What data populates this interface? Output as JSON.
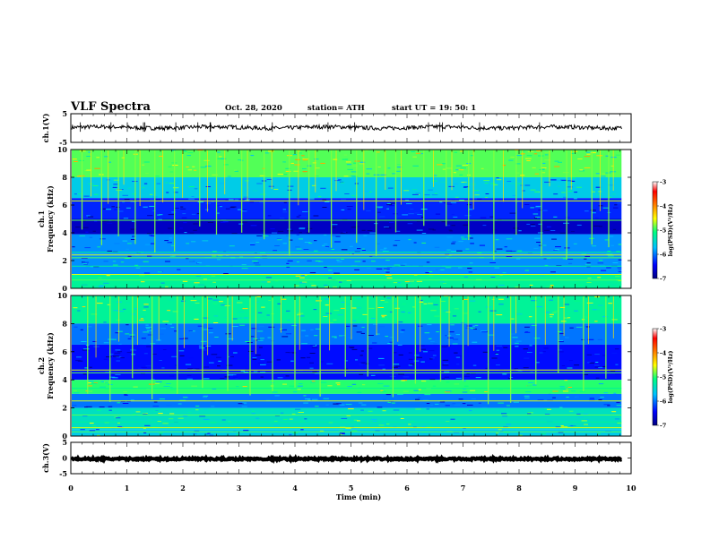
{
  "header": {
    "title": "VLF Spectra",
    "date": "Oct. 28, 2020",
    "station": "station= ATH",
    "start": "start  UT  =   19: 50: 1"
  },
  "chart_data": [
    {
      "type": "line",
      "panel": "ch1-waveform",
      "ylabel": "ch.1(V)",
      "ylim": [
        -5,
        5
      ],
      "y_ticks": [
        "5",
        "-5"
      ],
      "xlim": [
        0,
        10
      ],
      "trace_end_min": 9.83,
      "trace_mean_V": 0.2,
      "trace_color": "#000000"
    },
    {
      "type": "heatmap",
      "panel": "ch1-spectrogram",
      "ylabel": "ch.1",
      "ylabel2": "Frequency  (kHz)",
      "ylim": [
        0,
        10
      ],
      "y_ticks": [
        "0",
        "2",
        "4",
        "6",
        "8",
        "10"
      ],
      "xlim": [
        0,
        10
      ],
      "data_end_min": 9.83,
      "colorbar": {
        "label": "log(PSD)(V²/Hz)",
        "range": [
          -7,
          -3
        ],
        "ticks": [
          "-3",
          "-4",
          "-5",
          "-6",
          "-7"
        ],
        "colors": [
          "#000080",
          "#0000ff",
          "#00c0ff",
          "#00ff80",
          "#ffff00",
          "#ff8000",
          "#ff0000",
          "#ffffff"
        ]
      },
      "bands": [
        {
          "from_khz": 8.0,
          "to_khz": 10.0,
          "level": -4.9
        },
        {
          "from_khz": 6.5,
          "to_khz": 8.0,
          "level": -5.6
        },
        {
          "from_khz": 5.0,
          "to_khz": 6.5,
          "level": -6.3
        },
        {
          "from_khz": 3.9,
          "to_khz": 5.0,
          "level": -6.7
        },
        {
          "from_khz": 2.5,
          "to_khz": 3.9,
          "level": -5.9
        },
        {
          "from_khz": 1.0,
          "to_khz": 2.5,
          "level": -5.9
        },
        {
          "from_khz": 0.0,
          "to_khz": 1.0,
          "level": -5.2
        }
      ],
      "lines_khz": [
        6.3,
        4.9,
        2.6,
        2.4,
        2.2,
        1.6,
        1.0,
        0.6,
        0.3
      ],
      "spikes_min": [
        0.2,
        0.55,
        0.85,
        1.15,
        1.5,
        1.85,
        2.3,
        2.6,
        3.05,
        3.45,
        3.9,
        4.25,
        4.65,
        5.1,
        5.45,
        5.8,
        6.3,
        6.7,
        7.1,
        7.55,
        7.95,
        8.4,
        8.85,
        9.3,
        9.6
      ]
    },
    {
      "type": "heatmap",
      "panel": "ch2-spectrogram",
      "ylabel": "ch.2",
      "ylabel2": "Frequency  (kHz)",
      "ylim": [
        0,
        10
      ],
      "y_ticks": [
        "0",
        "2",
        "4",
        "6",
        "8",
        "10"
      ],
      "xlim": [
        0,
        10
      ],
      "data_end_min": 9.83,
      "colorbar": {
        "label": "log(PSD)(V²/Hz)",
        "range": [
          -7,
          -3
        ],
        "ticks": [
          "-3",
          "-4",
          "-5",
          "-6",
          "-7"
        ],
        "colors": [
          "#000080",
          "#0000ff",
          "#00c0ff",
          "#00ff80",
          "#ffff00",
          "#ff8000",
          "#ff0000",
          "#ffffff"
        ]
      },
      "bands": [
        {
          "from_khz": 8.0,
          "to_khz": 10.0,
          "level": -5.2
        },
        {
          "from_khz": 6.5,
          "to_khz": 8.0,
          "level": -6.0
        },
        {
          "from_khz": 4.0,
          "to_khz": 6.5,
          "level": -6.4
        },
        {
          "from_khz": 3.0,
          "to_khz": 4.0,
          "level": -5.0
        },
        {
          "from_khz": 2.0,
          "to_khz": 3.0,
          "level": -6.0
        },
        {
          "from_khz": 0.5,
          "to_khz": 2.0,
          "level": -5.4
        },
        {
          "from_khz": 0.0,
          "to_khz": 0.5,
          "level": -5.6
        }
      ],
      "lines_khz": [
        4.7,
        4.5,
        3.4,
        2.5,
        1.5,
        1.0,
        0.6,
        0.3
      ],
      "spikes_min": [
        0.3,
        0.7,
        1.1,
        1.45,
        1.9,
        2.35,
        2.8,
        3.2,
        3.6,
        4.0,
        4.45,
        4.9,
        5.3,
        5.75,
        6.15,
        6.6,
        7.0,
        7.45,
        7.85,
        8.3,
        8.7,
        9.15,
        9.55
      ]
    },
    {
      "type": "line",
      "panel": "ch3-waveform",
      "ylabel": "ch.3(V)",
      "ylim": [
        -5,
        5
      ],
      "y_ticks": [
        "5",
        "0",
        "-5"
      ],
      "xlim": [
        0,
        10
      ],
      "trace_end_min": 9.83,
      "trace_mean_V": -0.3,
      "trace_color": "#000000"
    }
  ],
  "x_axis": {
    "label": "Time  (min)",
    "ticks": [
      "0",
      "1",
      "2",
      "3",
      "4",
      "5",
      "6",
      "7",
      "8",
      "9",
      "10"
    ]
  }
}
